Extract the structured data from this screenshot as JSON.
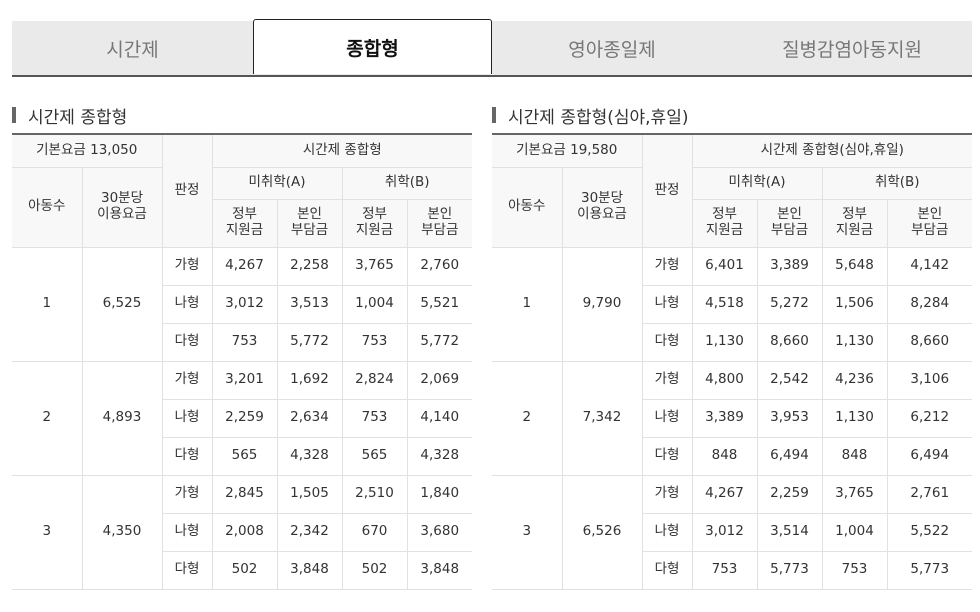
{
  "tabs": [
    {
      "label": "시간제"
    },
    {
      "label": "종합형"
    },
    {
      "label": "영아종일제"
    },
    {
      "label": "질병감염아동지원"
    }
  ],
  "active_tab": "종합형",
  "sections": [
    {
      "title": "시간제 종합형",
      "base_fee": "기본요금 13,050",
      "group_header": "시간제 종합형",
      "col_children": "아동수",
      "col_fee_l1": "30분당",
      "col_fee_l2": "이용요금",
      "col_grade": "판정",
      "sub_a": "미취학(A)",
      "sub_b": "취학(B)",
      "gov_l1": "정부",
      "gov_l2": "지원금",
      "self_l1": "본인",
      "self_l2": "부담금",
      "groups": [
        {
          "children": "1",
          "fee": "6,525",
          "rows": [
            {
              "grade": "가형",
              "a_gov": "4,267",
              "a_self": "2,258",
              "b_gov": "3,765",
              "b_self": "2,760"
            },
            {
              "grade": "나형",
              "a_gov": "3,012",
              "a_self": "3,513",
              "b_gov": "1,004",
              "b_self": "5,521"
            },
            {
              "grade": "다형",
              "a_gov": "753",
              "a_self": "5,772",
              "b_gov": "753",
              "b_self": "5,772"
            }
          ]
        },
        {
          "children": "2",
          "fee": "4,893",
          "rows": [
            {
              "grade": "가형",
              "a_gov": "3,201",
              "a_self": "1,692",
              "b_gov": "2,824",
              "b_self": "2,069"
            },
            {
              "grade": "나형",
              "a_gov": "2,259",
              "a_self": "2,634",
              "b_gov": "753",
              "b_self": "4,140"
            },
            {
              "grade": "다형",
              "a_gov": "565",
              "a_self": "4,328",
              "b_gov": "565",
              "b_self": "4,328"
            }
          ]
        },
        {
          "children": "3",
          "fee": "4,350",
          "rows": [
            {
              "grade": "가형",
              "a_gov": "2,845",
              "a_self": "1,505",
              "b_gov": "2,510",
              "b_self": "1,840"
            },
            {
              "grade": "나형",
              "a_gov": "2,008",
              "a_self": "2,342",
              "b_gov": "670",
              "b_self": "3,680"
            },
            {
              "grade": "다형",
              "a_gov": "502",
              "a_self": "3,848",
              "b_gov": "502",
              "b_self": "3,848"
            }
          ]
        }
      ]
    },
    {
      "title": "시간제 종합형(심야,휴일)",
      "base_fee": "기본요금 19,580",
      "group_header": "시간제 종합형(심야,휴일)",
      "col_children": "아동수",
      "col_fee_l1": "30분당",
      "col_fee_l2": "이용요금",
      "col_grade": "판정",
      "sub_a": "미취학(A)",
      "sub_b": "취학(B)",
      "gov_l1": "정부",
      "gov_l2": "지원금",
      "self_l1": "본인",
      "self_l2": "부담금",
      "groups": [
        {
          "children": "1",
          "fee": "9,790",
          "rows": [
            {
              "grade": "가형",
              "a_gov": "6,401",
              "a_self": "3,389",
              "b_gov": "5,648",
              "b_self": "4,142"
            },
            {
              "grade": "나형",
              "a_gov": "4,518",
              "a_self": "5,272",
              "b_gov": "1,506",
              "b_self": "8,284"
            },
            {
              "grade": "다형",
              "a_gov": "1,130",
              "a_self": "8,660",
              "b_gov": "1,130",
              "b_self": "8,660"
            }
          ]
        },
        {
          "children": "2",
          "fee": "7,342",
          "rows": [
            {
              "grade": "가형",
              "a_gov": "4,800",
              "a_self": "2,542",
              "b_gov": "4,236",
              "b_self": "3,106"
            },
            {
              "grade": "나형",
              "a_gov": "3,389",
              "a_self": "3,953",
              "b_gov": "1,130",
              "b_self": "6,212"
            },
            {
              "grade": "다형",
              "a_gov": "848",
              "a_self": "6,494",
              "b_gov": "848",
              "b_self": "6,494"
            }
          ]
        },
        {
          "children": "3",
          "fee": "6,526",
          "rows": [
            {
              "grade": "가형",
              "a_gov": "4,267",
              "a_self": "2,259",
              "b_gov": "3,765",
              "b_self": "2,761"
            },
            {
              "grade": "나형",
              "a_gov": "3,012",
              "a_self": "3,514",
              "b_gov": "1,004",
              "b_self": "5,522"
            },
            {
              "grade": "다형",
              "a_gov": "753",
              "a_self": "5,773",
              "b_gov": "753",
              "b_self": "5,773"
            }
          ]
        }
      ]
    }
  ]
}
